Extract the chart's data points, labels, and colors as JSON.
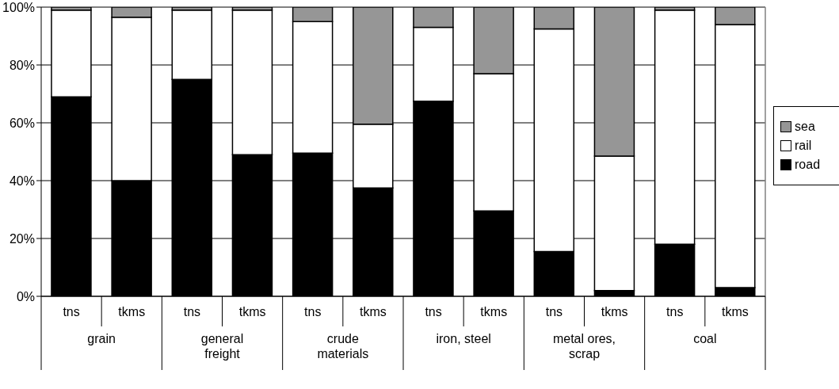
{
  "chart_data": {
    "type": "bar",
    "stacked": true,
    "categories": [
      "tns",
      "tkms",
      "tns",
      "tkms",
      "tns",
      "tkms",
      "tns",
      "tkms",
      "tns",
      "tkms",
      "tns",
      "tkms"
    ],
    "series": [
      {
        "name": "road",
        "color": "#000000",
        "values": [
          69,
          40,
          75,
          49,
          49.5,
          37.5,
          67.5,
          29.5,
          15.5,
          2,
          18,
          3
        ]
      },
      {
        "name": "rail",
        "color": "#ffffff",
        "values": [
          30,
          56.5,
          24,
          50,
          45.5,
          22,
          25.5,
          47.5,
          77,
          46.5,
          81,
          91
        ]
      },
      {
        "name": "sea",
        "color": "#969696",
        "values": [
          1,
          3.5,
          1,
          1,
          5,
          40.5,
          7,
          23,
          7.5,
          51.5,
          1,
          6
        ]
      }
    ],
    "annotations": [
      "grain",
      "general freight",
      "crude materials",
      "iron, steel",
      "metal ores, scrap",
      "coal"
    ],
    "ylim": [
      0,
      100
    ],
    "yticks": [
      {
        "value": 0,
        "label": "0%"
      },
      {
        "value": 20,
        "label": "20%"
      },
      {
        "value": 40,
        "label": "40%"
      },
      {
        "value": 60,
        "label": "60%"
      },
      {
        "value": 80,
        "label": "80%"
      },
      {
        "value": 100,
        "label": "100%"
      }
    ],
    "grid": "y",
    "legend": "right"
  }
}
